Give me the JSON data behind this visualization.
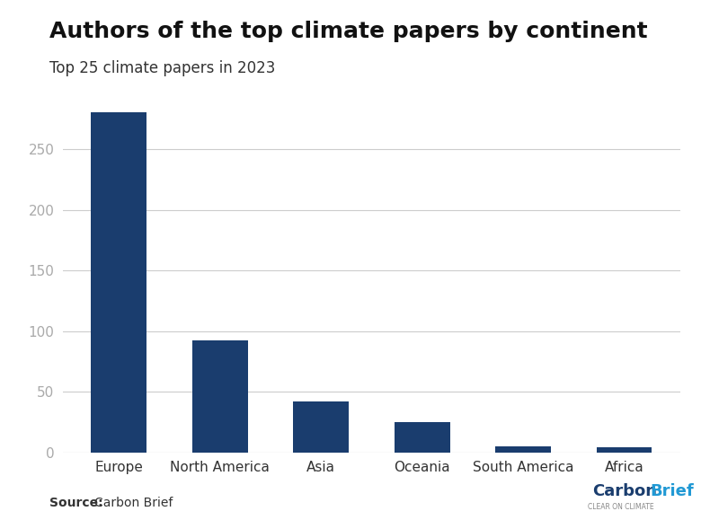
{
  "title": "Authors of the top climate papers by continent",
  "subtitle": "Top 25 climate papers in 2023",
  "categories": [
    "Europe",
    "North America",
    "Asia",
    "Oceania",
    "South America",
    "Africa"
  ],
  "values": [
    280,
    92,
    42,
    25,
    5,
    4
  ],
  "bar_color": "#1a3d6e",
  "ylim": [
    0,
    300
  ],
  "yticks": [
    0,
    50,
    100,
    150,
    200,
    250
  ],
  "source_text": "Source: Carbon Brief",
  "background_color": "#ffffff",
  "grid_color": "#cccccc",
  "title_fontsize": 18,
  "subtitle_fontsize": 12,
  "tick_label_fontsize": 11,
  "source_fontsize": 10
}
